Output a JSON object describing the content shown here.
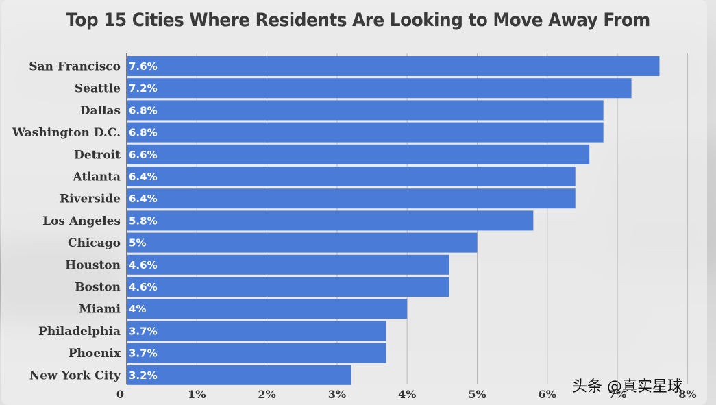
{
  "chart_data": {
    "type": "bar",
    "orientation": "horizontal",
    "title": "Top 15 Cities Where Residents Are Looking to Move Away From",
    "categories": [
      "San Francisco",
      "Seattle",
      "Dallas",
      "Washington D.C.",
      "Detroit",
      "Atlanta",
      "Riverside",
      "Los Angeles",
      "Chicago",
      "Houston",
      "Boston",
      "Miami",
      "Philadelphia",
      "Phoenix",
      "New York City"
    ],
    "values": [
      7.6,
      7.2,
      6.8,
      6.8,
      6.6,
      6.4,
      6.4,
      5.8,
      5.0,
      4.6,
      4.6,
      4.0,
      3.7,
      3.7,
      3.2
    ],
    "value_labels": [
      "7.6%",
      "7.2%",
      "6.8%",
      "6.8%",
      "6.6%",
      "6.4%",
      "6.4%",
      "5.8%",
      "5%",
      "4.6%",
      "4.6%",
      "4%",
      "3.7%",
      "3.7%",
      "3.2%"
    ],
    "xlim": [
      0,
      8
    ],
    "xticks": [
      0,
      1,
      2,
      3,
      4,
      5,
      6,
      7,
      8
    ],
    "xtick_labels": [
      "0",
      "1%",
      "2%",
      "3%",
      "4%",
      "5%",
      "6%",
      "7%",
      "8%"
    ],
    "xlabel": "",
    "ylabel": "",
    "grid": true,
    "bar_color": "#4a7bd6",
    "grid_color": "#b8b8b8",
    "axis_color": "#555555"
  },
  "watermark": "头条 @真实星球"
}
